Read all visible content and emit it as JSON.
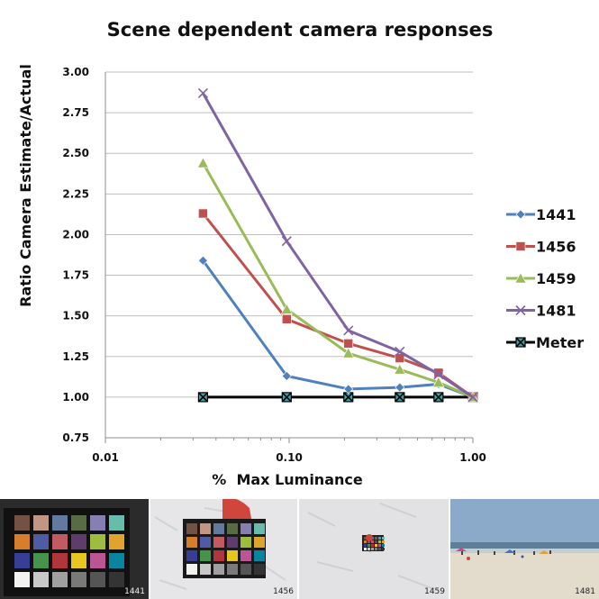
{
  "chart_data": {
    "type": "line",
    "title": "Scene dependent camera responses",
    "xlabel": "%  Max Luminance",
    "ylabel": "Ratio Camera Estimate/Actual",
    "xscale": "log",
    "xlim": [
      0.01,
      1.0
    ],
    "ylim": [
      0.75,
      3.0
    ],
    "x_ticks": [
      "0.01",
      "0.10",
      "1.00"
    ],
    "x_tick_values": [
      0.01,
      0.1,
      1.0
    ],
    "y_ticks": [
      "0.75",
      "1.00",
      "1.25",
      "1.50",
      "1.75",
      "2.00",
      "2.25",
      "2.50",
      "2.75",
      "3.00"
    ],
    "y_tick_values": [
      0.75,
      1.0,
      1.25,
      1.5,
      1.75,
      2.0,
      2.25,
      2.5,
      2.75,
      3.0
    ],
    "grid": "horizontal",
    "legend_position": "right",
    "x": [
      0.034,
      0.097,
      0.21,
      0.4,
      0.65,
      1.0
    ],
    "series": [
      {
        "name": "1441",
        "color": "#4f81bd",
        "marker": "diamond",
        "values": [
          1.84,
          1.13,
          1.05,
          1.06,
          1.08,
          1.0
        ]
      },
      {
        "name": "1456",
        "color": "#c0504d",
        "marker": "square",
        "values": [
          2.13,
          1.48,
          1.33,
          1.24,
          1.15,
          1.0
        ]
      },
      {
        "name": "1459",
        "color": "#9bbb59",
        "marker": "triangle",
        "values": [
          2.44,
          1.54,
          1.27,
          1.17,
          1.09,
          1.0
        ]
      },
      {
        "name": "1481",
        "color": "#8064a2",
        "marker": "x",
        "values": [
          2.87,
          1.96,
          1.41,
          1.28,
          1.14,
          1.0
        ]
      },
      {
        "name": "Meter",
        "color": "#000000",
        "marker": "boxed-x",
        "values": [
          1.0,
          1.0,
          1.0,
          1.0,
          1.0,
          1.0
        ]
      }
    ]
  },
  "photos": [
    {
      "caption": "1441",
      "icon": "color-checker-closeup-photo"
    },
    {
      "caption": "1456",
      "icon": "color-checker-on-sand-photo"
    },
    {
      "caption": "1459",
      "icon": "small-color-checker-on-sand-photo"
    },
    {
      "caption": "1481",
      "icon": "beach-scene-photo"
    }
  ]
}
